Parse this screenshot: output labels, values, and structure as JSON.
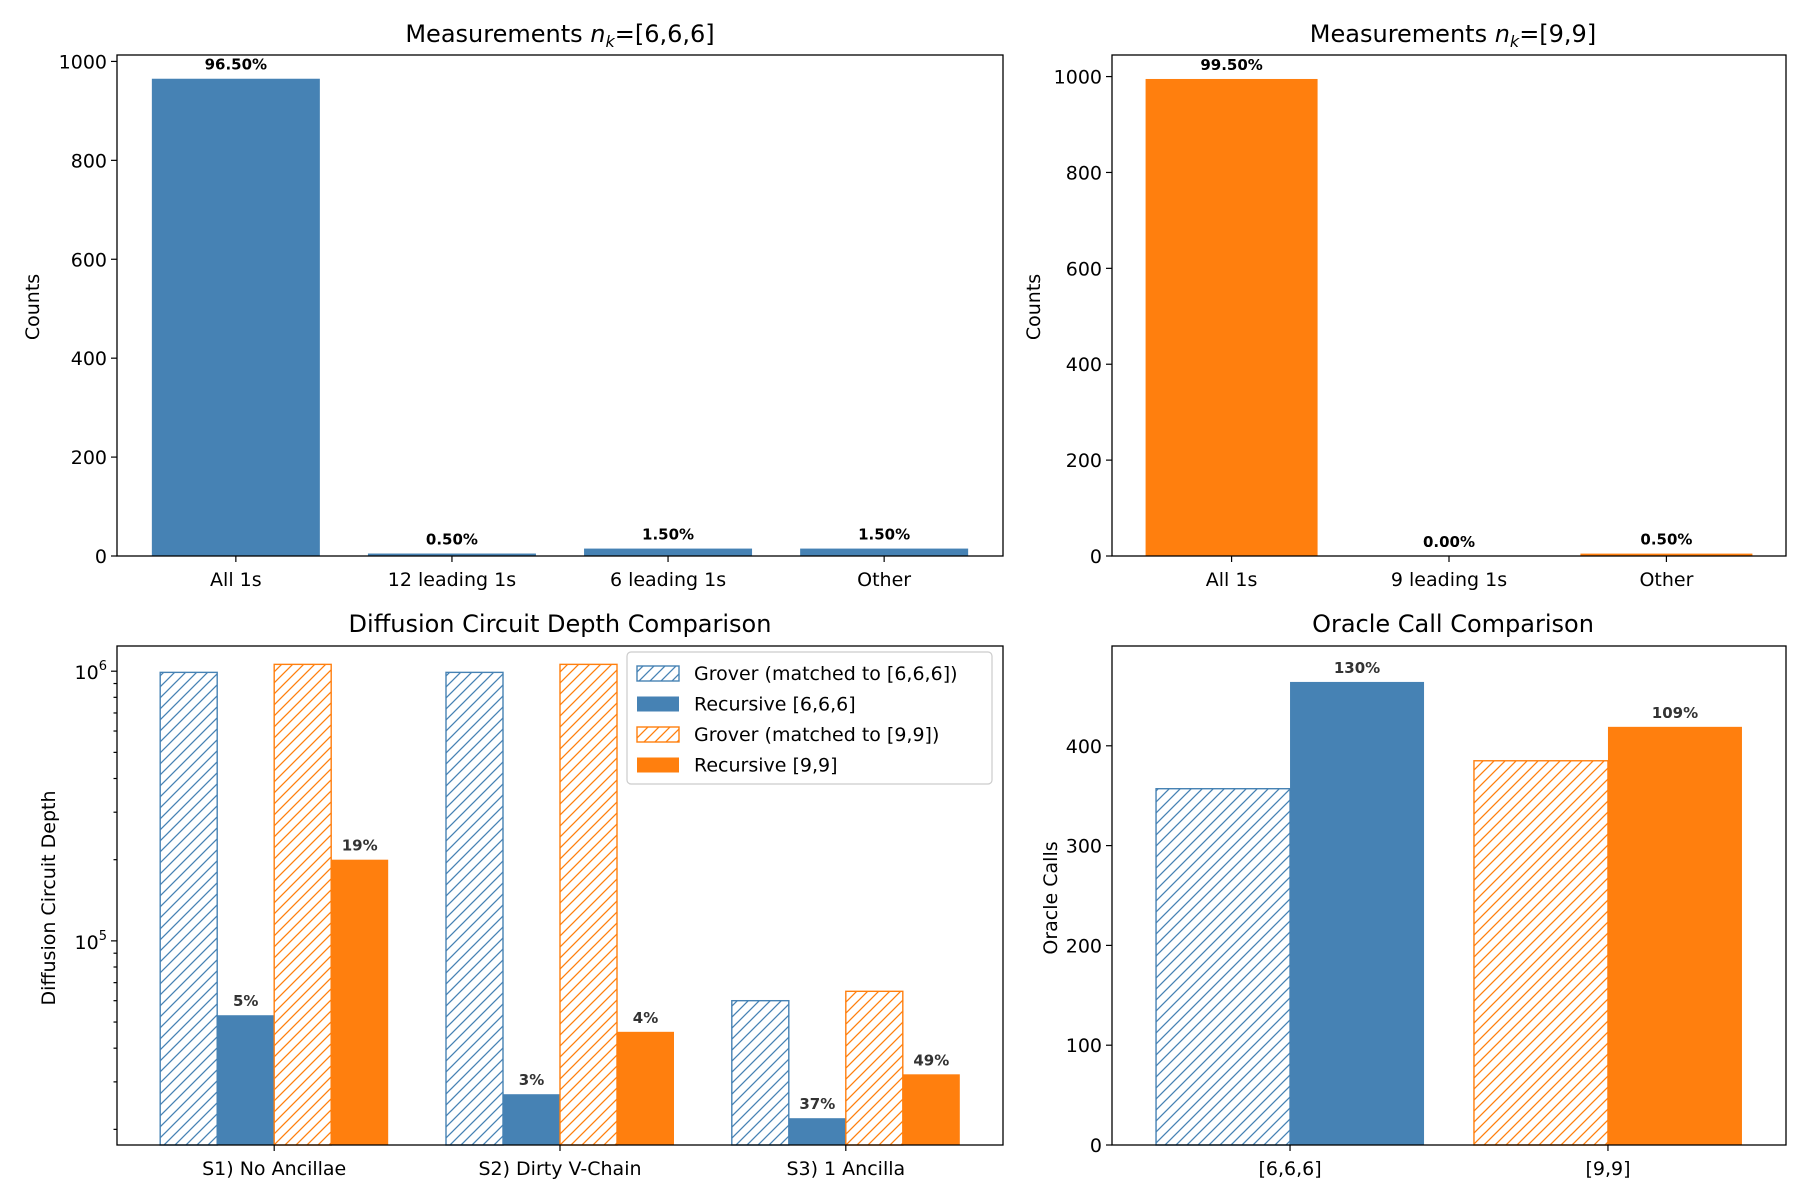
{
  "chart_data": [
    {
      "type": "bar",
      "title_prefix": "Measurements ",
      "title_var": "n",
      "title_sub": "k",
      "title_suffix": "=[6,6,6]",
      "ylabel": "Counts",
      "categories": [
        "All 1s",
        "12 leading 1s",
        "6 leading 1s",
        "Other"
      ],
      "values": [
        965,
        5,
        15,
        15
      ],
      "value_labels": [
        "96.50%",
        "0.50%",
        "1.50%",
        "1.50%"
      ],
      "ylim": [
        0,
        1013
      ],
      "yticks": [
        0,
        200,
        400,
        600,
        800,
        1000
      ],
      "color": "#4682b4"
    },
    {
      "type": "bar",
      "title_prefix": "Measurements ",
      "title_var": "n",
      "title_sub": "k",
      "title_suffix": "=[9,9]",
      "ylabel": "Counts",
      "categories": [
        "All 1s",
        "9 leading 1s",
        "Other"
      ],
      "values": [
        995,
        0,
        5
      ],
      "value_labels": [
        "99.50%",
        "0.00%",
        "0.50%"
      ],
      "ylim": [
        0,
        1045
      ],
      "yticks": [
        0,
        200,
        400,
        600,
        800,
        1000
      ],
      "color": "#ff7f0e"
    },
    {
      "type": "bar",
      "title": "Diffusion Circuit Depth Comparison",
      "ylabel": "Diffusion Circuit Depth",
      "yscale": "log",
      "ylim": [
        17500,
        1240000
      ],
      "yticks": [
        {
          "base": "10",
          "exp": "5",
          "value": 100000
        },
        {
          "base": "10",
          "exp": "6",
          "value": 1000000
        }
      ],
      "categories": [
        "S1) No Ancillae",
        "S2) Dirty V-Chain",
        "S3) 1 Ancilla"
      ],
      "series": [
        {
          "name": "Grover (matched to [6,6,6])",
          "values": [
            990000,
            990000,
            60000
          ],
          "color": "#4682b4",
          "hatched": true,
          "labels": [
            "",
            "",
            ""
          ]
        },
        {
          "name": "Recursive [6,6,6]",
          "values": [
            53000,
            27000,
            22000
          ],
          "color": "#4682b4",
          "hatched": false,
          "labels": [
            "5%",
            "3%",
            "37%"
          ]
        },
        {
          "name": "Grover (matched to [9,9])",
          "values": [
            1060000,
            1060000,
            65000
          ],
          "color": "#ff7f0e",
          "hatched": true,
          "labels": [
            "",
            "",
            ""
          ]
        },
        {
          "name": "Recursive [9,9]",
          "values": [
            200000,
            46000,
            32000
          ],
          "color": "#ff7f0e",
          "hatched": false,
          "labels": [
            "19%",
            "4%",
            "49%"
          ]
        }
      ],
      "legend": "top-right"
    },
    {
      "type": "bar",
      "title": "Oracle Call Comparison",
      "ylabel": "Oracle Calls",
      "ylim": [
        0,
        500
      ],
      "yticks": [
        0,
        100,
        200,
        300,
        400
      ],
      "categories": [
        "[6,6,6]",
        "[9,9]"
      ],
      "groups": [
        {
          "grover": 357,
          "recursive": 464,
          "label": "130%",
          "color": "#4682b4"
        },
        {
          "grover": 385,
          "recursive": 419,
          "label": "109%",
          "color": "#ff7f0e"
        }
      ]
    }
  ]
}
